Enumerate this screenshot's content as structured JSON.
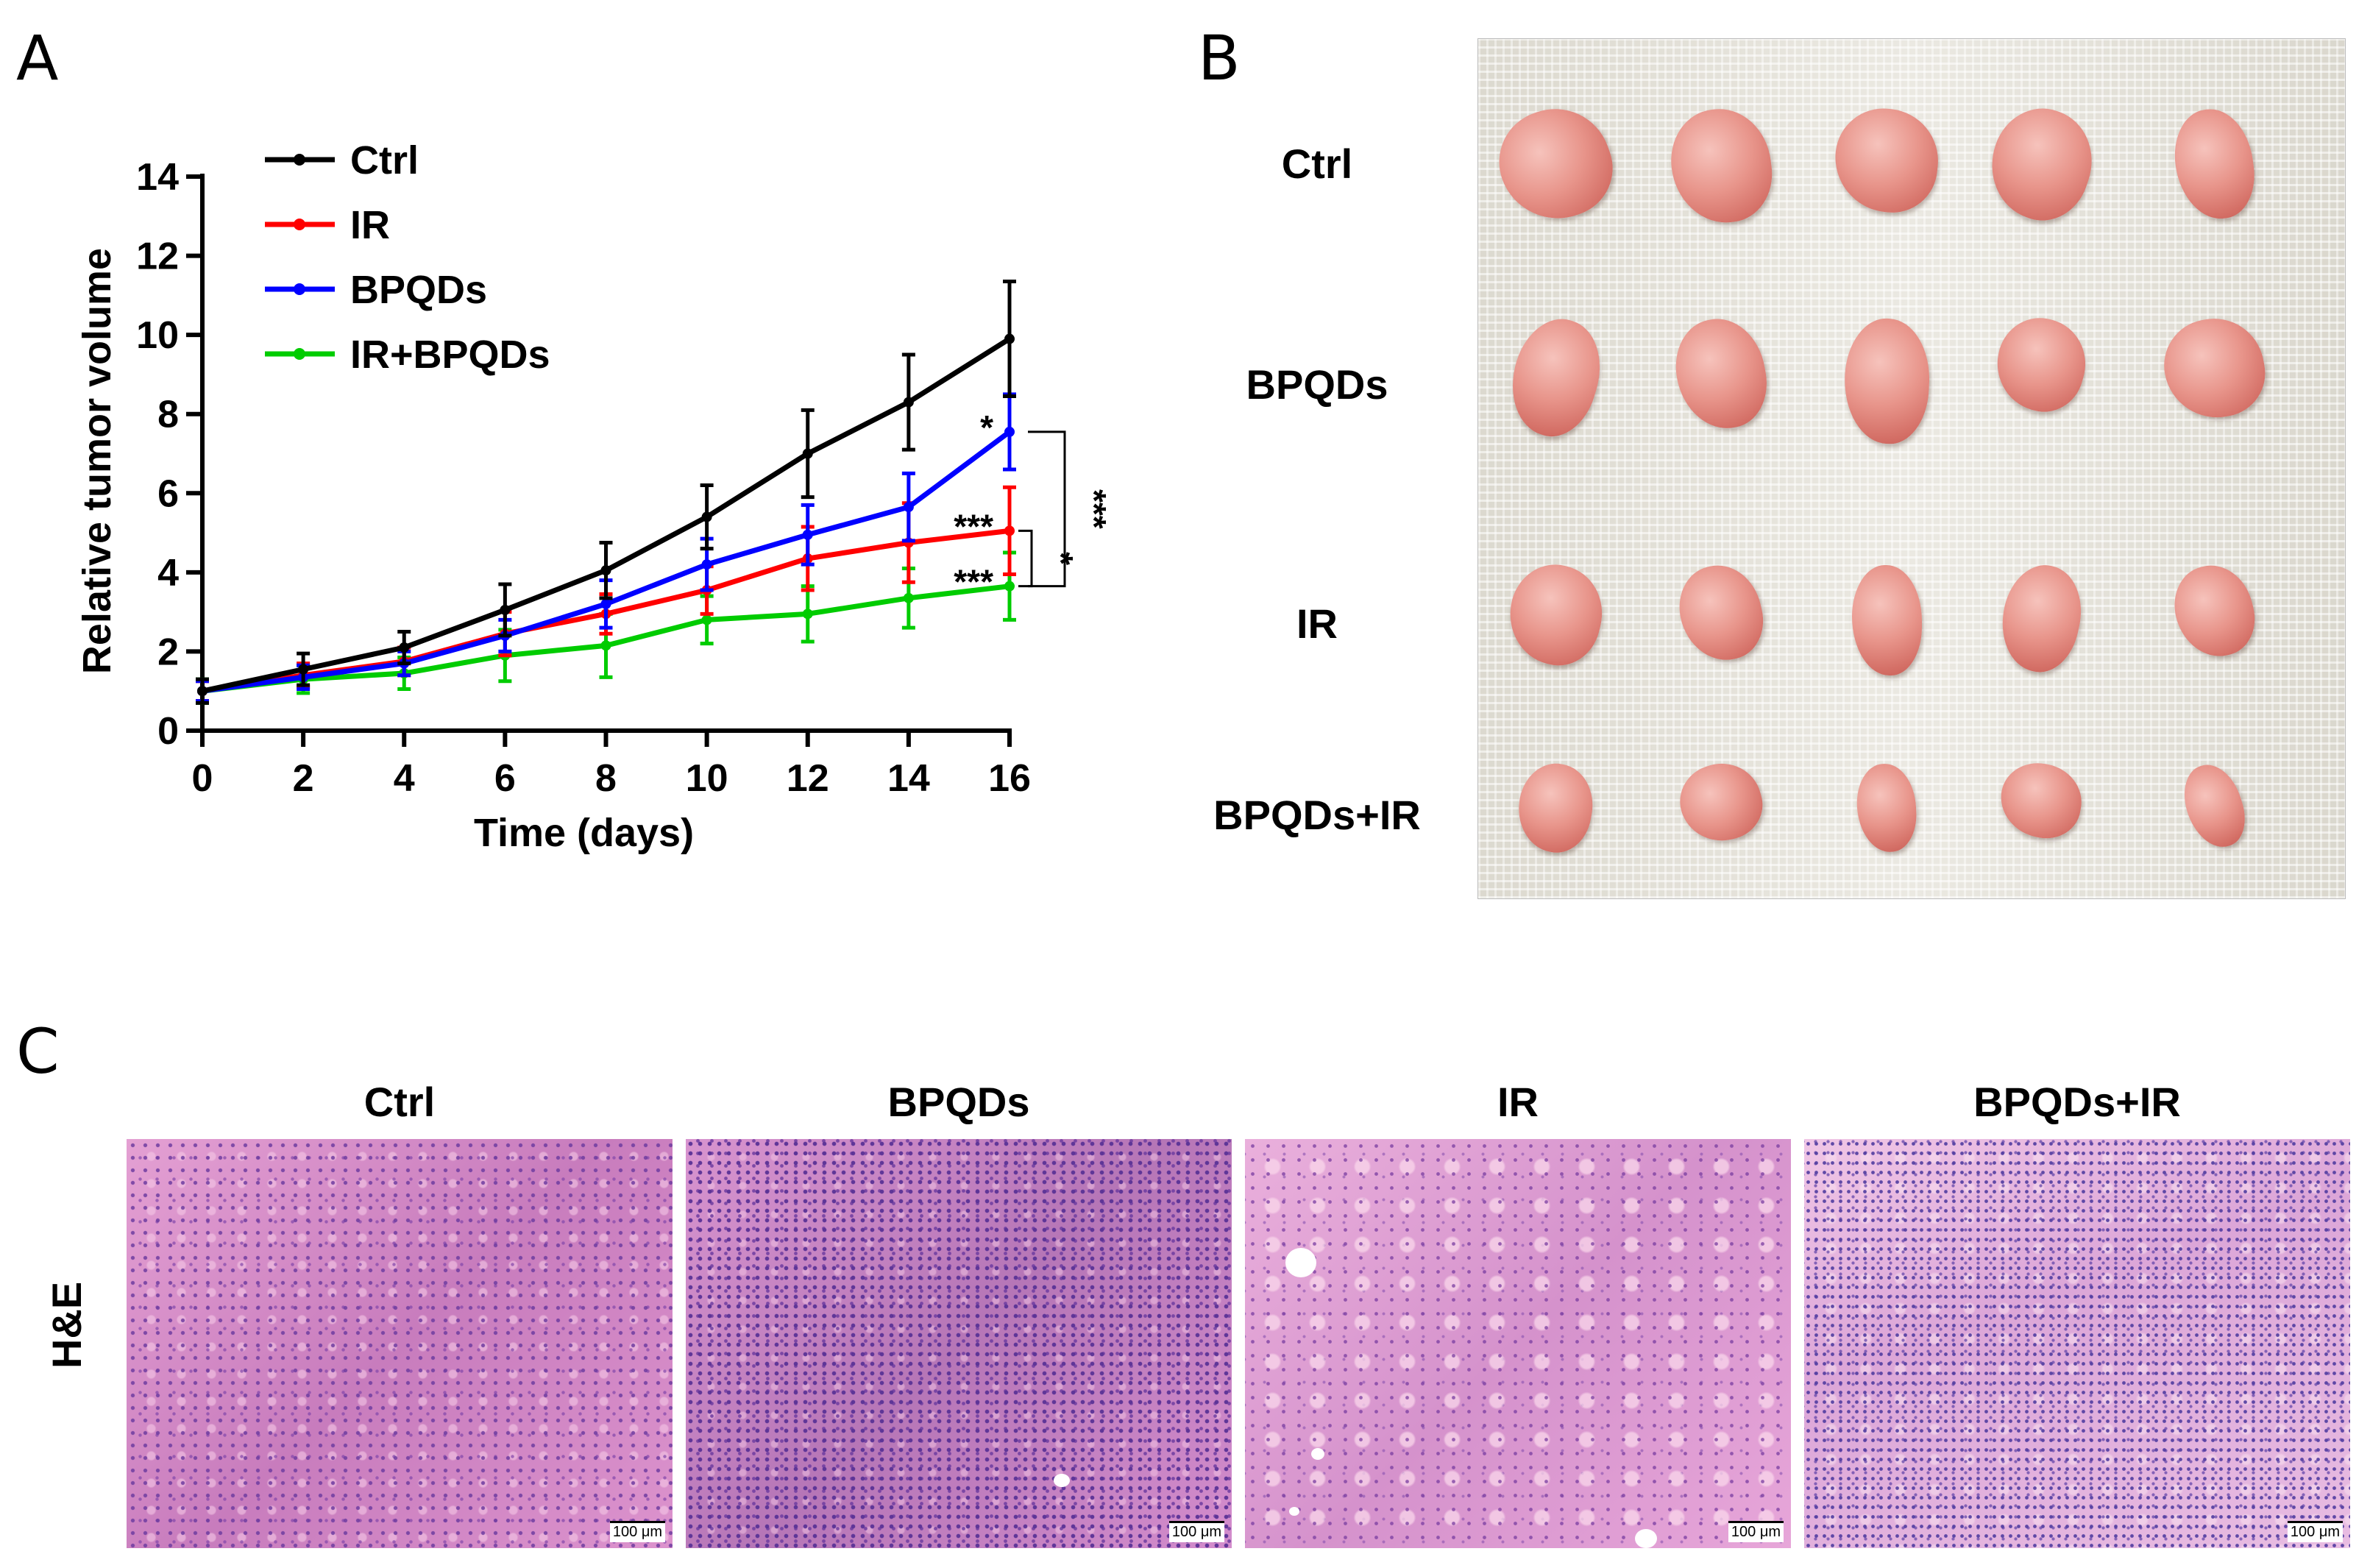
{
  "panels": {
    "a": "A",
    "b": "B",
    "c": "C"
  },
  "chart_data": {
    "type": "line",
    "title": "",
    "xlabel": "Time (days)",
    "ylabel": "Relative tumor volume",
    "xlim": [
      0,
      16
    ],
    "ylim": [
      0,
      14
    ],
    "xticks": [
      0,
      2,
      4,
      6,
      8,
      10,
      12,
      14,
      16
    ],
    "yticks": [
      0,
      2,
      4,
      6,
      8,
      10,
      12,
      14
    ],
    "grid": false,
    "legend_position": "top-left",
    "x": [
      0,
      2,
      4,
      6,
      8,
      10,
      12,
      14,
      16
    ],
    "series": [
      {
        "name": "Ctrl",
        "color": "#000000",
        "values": [
          1.0,
          1.55,
          2.1,
          3.05,
          4.05,
          5.4,
          7.0,
          8.3,
          9.9
        ],
        "errors": [
          0.3,
          0.4,
          0.4,
          0.65,
          0.7,
          0.8,
          1.1,
          1.2,
          1.45
        ]
      },
      {
        "name": "IR",
        "color": "#ff0000",
        "values": [
          1.0,
          1.4,
          1.75,
          2.45,
          2.95,
          3.55,
          4.35,
          4.75,
          5.05
        ],
        "errors": [
          0.25,
          0.3,
          0.35,
          0.55,
          0.5,
          0.6,
          0.8,
          1.0,
          1.1
        ]
      },
      {
        "name": "BPQDs",
        "color": "#0000ff",
        "values": [
          1.0,
          1.35,
          1.7,
          2.4,
          3.2,
          4.2,
          4.95,
          5.65,
          7.55
        ],
        "errors": [
          0.25,
          0.3,
          0.3,
          0.4,
          0.6,
          0.65,
          0.75,
          0.85,
          0.95
        ]
      },
      {
        "name": "IR+BPQDs",
        "color": "#00cc00",
        "values": [
          1.0,
          1.3,
          1.45,
          1.9,
          2.15,
          2.8,
          2.95,
          3.35,
          3.65
        ],
        "errors": [
          0.3,
          0.35,
          0.4,
          0.65,
          0.8,
          0.6,
          0.7,
          0.75,
          0.85
        ]
      }
    ],
    "annotations": [
      {
        "text": "*",
        "near_series": "BPQDs",
        "x": 16
      },
      {
        "text": "***",
        "near_series": "IR",
        "x": 16
      },
      {
        "text": "***",
        "near_series": "IR+BPQDs",
        "x": 16
      },
      {
        "text": "***",
        "bracket": [
          "BPQDs",
          "IR+BPQDs"
        ]
      },
      {
        "text": "*",
        "bracket": [
          "IR",
          "IR+BPQDs"
        ]
      }
    ]
  },
  "photo_b": {
    "row_labels": [
      "Ctrl",
      "BPQDs",
      "IR",
      "BPQDs+IR"
    ],
    "tumors_per_row": 5
  },
  "panel_c": {
    "titles": [
      "Ctrl",
      "BPQDs",
      "IR",
      "BPQDs+IR"
    ],
    "stain_label": "H&E",
    "scalebar_label": "100 μm"
  }
}
